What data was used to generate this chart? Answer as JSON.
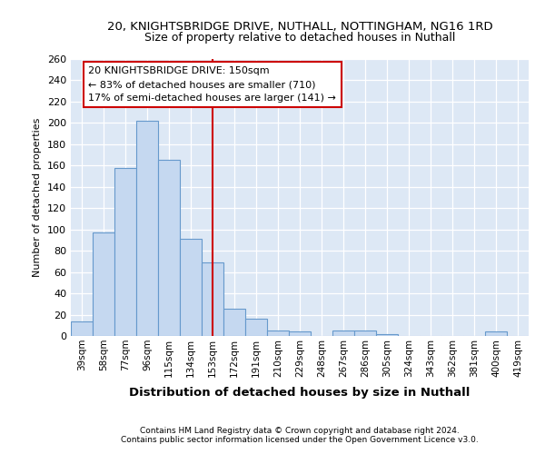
{
  "title_line1": "20, KNIGHTSBRIDGE DRIVE, NUTHALL, NOTTINGHAM, NG16 1RD",
  "title_line2": "Size of property relative to detached houses in Nuthall",
  "xlabel": "Distribution of detached houses by size in Nuthall",
  "ylabel": "Number of detached properties",
  "categories": [
    "39sqm",
    "58sqm",
    "77sqm",
    "96sqm",
    "115sqm",
    "134sqm",
    "153sqm",
    "172sqm",
    "191sqm",
    "210sqm",
    "229sqm",
    "248sqm",
    "267sqm",
    "286sqm",
    "305sqm",
    "324sqm",
    "343sqm",
    "362sqm",
    "381sqm",
    "400sqm",
    "419sqm"
  ],
  "values": [
    14,
    97,
    158,
    202,
    165,
    91,
    69,
    26,
    16,
    5,
    4,
    0,
    5,
    5,
    2,
    0,
    0,
    0,
    0,
    4,
    0
  ],
  "bar_color": "#c5d8f0",
  "bar_edge_color": "#6699cc",
  "vline_color": "#cc0000",
  "vline_x": 6,
  "annotation_text": "20 KNIGHTSBRIDGE DRIVE: 150sqm\n← 83% of detached houses are smaller (710)\n17% of semi-detached houses are larger (141) →",
  "annotation_box_edge": "#cc0000",
  "ylim": [
    0,
    260
  ],
  "yticks": [
    0,
    20,
    40,
    60,
    80,
    100,
    120,
    140,
    160,
    180,
    200,
    220,
    240,
    260
  ],
  "footer_line1": "Contains HM Land Registry data © Crown copyright and database right 2024.",
  "footer_line2": "Contains public sector information licensed under the Open Government Licence v3.0.",
  "plot_bg_color": "#dde8f5"
}
